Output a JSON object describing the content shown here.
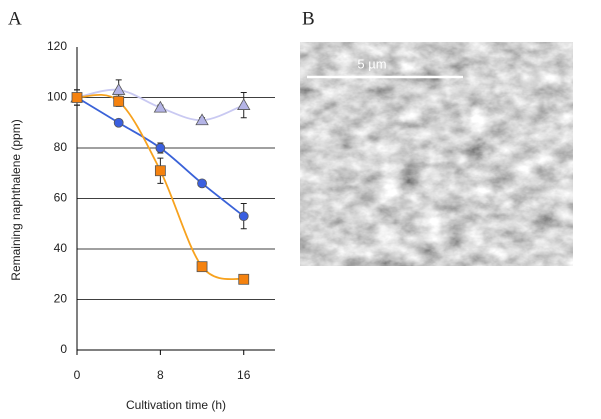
{
  "panels": {
    "a": "A",
    "b": "B"
  },
  "image": {
    "scale_label": "5 µm"
  },
  "chart_data": {
    "type": "line",
    "xlabel": "Cultivation time (h)",
    "ylabel": "Remaining naphthalene (ppm)",
    "x": [
      0,
      4,
      8,
      12,
      16
    ],
    "xlim": [
      0,
      19
    ],
    "xticks": [
      0,
      8,
      16
    ],
    "ylim": [
      0,
      120
    ],
    "yticks": [
      0,
      20,
      40,
      60,
      80,
      100,
      120
    ],
    "grid": true,
    "series": [
      {
        "marker": "triangle",
        "color": "#b4b4e6",
        "line_color": "#c9c9f2",
        "values": [
          100,
          103,
          96,
          91,
          97
        ],
        "errors": [
          3,
          4,
          1,
          1,
          5
        ]
      },
      {
        "marker": "circle",
        "color": "#3a5fe0",
        "line_color": "#3a62d8",
        "values": [
          100,
          90,
          80,
          66,
          53
        ],
        "errors": [
          3,
          1,
          2,
          1,
          5
        ]
      },
      {
        "marker": "square",
        "color": "#f5820f",
        "line_color": "#f7a21e",
        "values": [
          100,
          98.5,
          71,
          33,
          28
        ],
        "errors": [
          3,
          2,
          5,
          1,
          1
        ]
      }
    ]
  }
}
